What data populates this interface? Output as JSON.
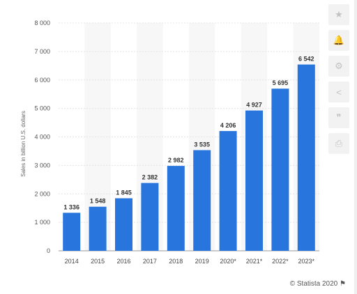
{
  "chart_data": {
    "type": "bar",
    "categories": [
      "2014",
      "2015",
      "2016",
      "2017",
      "2018",
      "2019",
      "2020*",
      "2021*",
      "2022*",
      "2023*"
    ],
    "values": [
      1336,
      1548,
      1845,
      2382,
      2982,
      3535,
      4206,
      4927,
      5695,
      6542
    ],
    "value_labels": [
      "1 336",
      "1 548",
      "1 845",
      "2 382",
      "2 982",
      "3 535",
      "4 206",
      "4 927",
      "5 695",
      "6 542"
    ],
    "title": "",
    "xlabel": "",
    "ylabel": "Sales in billion U.S. dollars",
    "ylim": [
      0,
      8000
    ],
    "yticks": [
      0,
      1000,
      2000,
      3000,
      4000,
      5000,
      6000,
      7000,
      8000
    ],
    "ytick_labels": [
      "0",
      "1 000",
      "2 000",
      "3 000",
      "4 000",
      "5 000",
      "6 000",
      "7 000",
      "8 000"
    ],
    "bar_color": "#2876dd",
    "grid": true,
    "legend": "none"
  },
  "toolbar": {
    "buttons": [
      {
        "name": "favorite-button",
        "icon": "star-icon",
        "glyph": "★"
      },
      {
        "name": "notification-button",
        "icon": "bell-icon",
        "glyph": "🔔"
      },
      {
        "name": "settings-button",
        "icon": "gear-icon",
        "glyph": "⚙"
      },
      {
        "name": "share-button",
        "icon": "share-icon",
        "glyph": "<"
      },
      {
        "name": "cite-button",
        "icon": "quote-icon",
        "glyph": "❞"
      },
      {
        "name": "print-button",
        "icon": "printer-icon",
        "glyph": "⎙"
      }
    ]
  },
  "footer": {
    "credit": "© Statista 2020",
    "flag_icon": "flag-icon"
  }
}
